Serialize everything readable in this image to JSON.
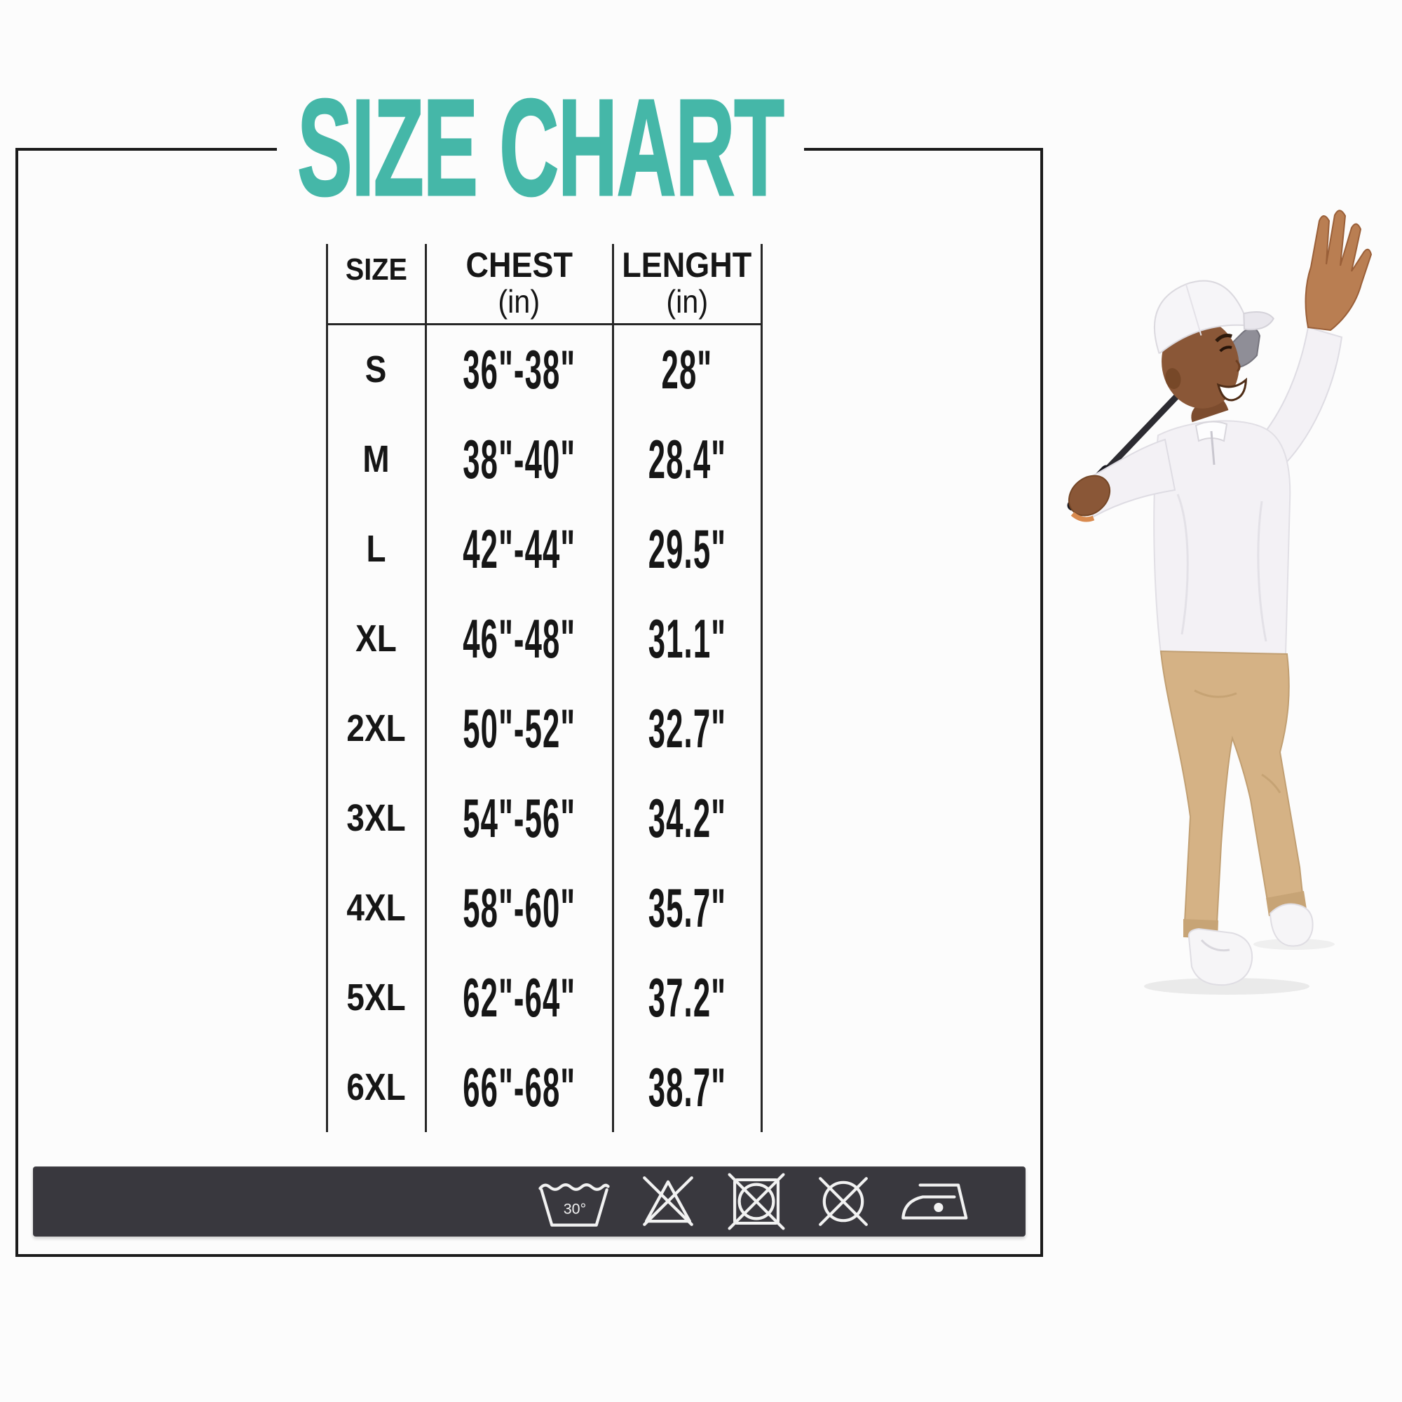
{
  "title": "SIZE CHART",
  "table": {
    "columns": [
      {
        "label": "SIZE",
        "unit": ""
      },
      {
        "label": "CHEST",
        "unit": "(in)"
      },
      {
        "label": "LENGHT",
        "unit": "(in)"
      }
    ],
    "rows": [
      {
        "size": "S",
        "chest": "36\"-38\"",
        "length": "28\""
      },
      {
        "size": "M",
        "chest": "38\"-40\"",
        "length": "28.4\""
      },
      {
        "size": "L",
        "chest": "42\"-44\"",
        "length": "29.5\""
      },
      {
        "size": "XL",
        "chest": "46\"-48\"",
        "length": "31.1\""
      },
      {
        "size": "2XL",
        "chest": "50\"-52\"",
        "length": "32.7\""
      },
      {
        "size": "3XL",
        "chest": "54\"-56\"",
        "length": "34.2\""
      },
      {
        "size": "4XL",
        "chest": "58\"-60\"",
        "length": "35.7\""
      },
      {
        "size": "5XL",
        "chest": "62\"-64\"",
        "length": "37.2\""
      },
      {
        "size": "6XL",
        "chest": "66\"-68\"",
        "length": "38.7\""
      }
    ]
  },
  "care": {
    "wash_temp_label": "30°",
    "icons": [
      {
        "name": "machine-wash-30-icon"
      },
      {
        "name": "do-not-bleach-icon"
      },
      {
        "name": "do-not-tumble-dry-icon"
      },
      {
        "name": "do-not-dry-clean-icon"
      },
      {
        "name": "iron-one-dot-icon"
      }
    ]
  },
  "figure": {
    "name": "golfer-photo"
  },
  "colors": {
    "accent_teal": "#45b7a8",
    "frame_black": "#1b1b1b",
    "care_bar_bg": "#39383e",
    "pants_tan": "#d5b285"
  }
}
